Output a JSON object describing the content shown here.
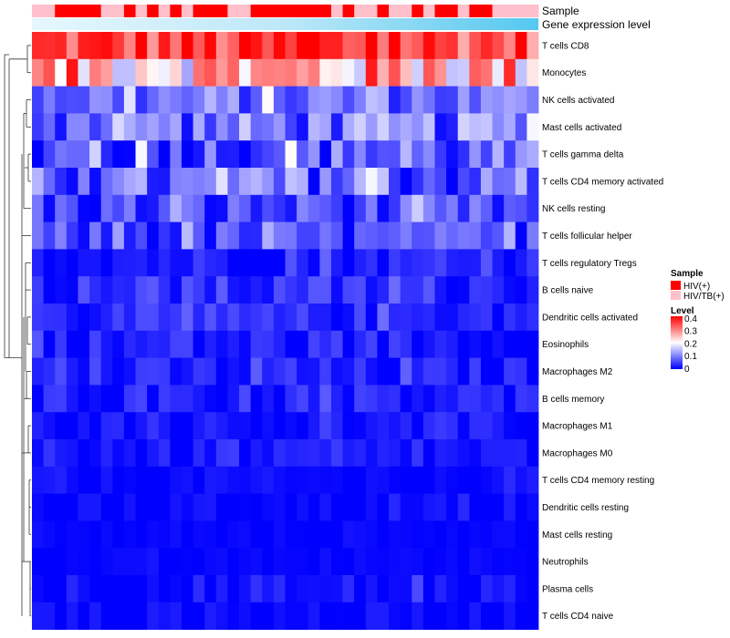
{
  "chart_data": {
    "type": "heatmap",
    "annotation_labels": [
      "Sample",
      "Gene expression level"
    ],
    "rows": [
      "T cells CD8",
      "Monocytes",
      "NK cells activated",
      "Mast cells activated",
      "T cells gamma delta",
      "T cells CD4 memory activated",
      "NK cells resting",
      "T cells follicular helper",
      "T cells regulatory  Tregs",
      "B cells naive",
      "Dendritic cells activated",
      "Eosinophils",
      "Macrophages M2",
      "B cells memory",
      "Macrophages M1",
      "Macrophages M0",
      "T cells CD4 memory resting",
      "Dendritic cells resting",
      "Mast cells resting",
      "Neutrophils",
      "Plasma cells",
      "T cells CD4 naive"
    ],
    "sample_groups": [
      "HIV(+)",
      "HIV/TB(+)"
    ],
    "sample_colors": {
      "HIV(+)": "#ff0000",
      "HIV/TB(+)": "#ffc0cb"
    },
    "sample_annotation": [
      1,
      1,
      0,
      0,
      0,
      0,
      1,
      1,
      0,
      1,
      0,
      1,
      0,
      1,
      0,
      0,
      0,
      1,
      1,
      0,
      0,
      0,
      0,
      0,
      0,
      0,
      1,
      0,
      1,
      1,
      0,
      1,
      1,
      0,
      1,
      0,
      0,
      1,
      0,
      0,
      1,
      1,
      1,
      1
    ],
    "legend": {
      "sample_title": "Sample",
      "level_title": "Level",
      "level_ticks": [
        0.4,
        0.3,
        0.2,
        0.1,
        0
      ],
      "level_range": [
        0,
        0.42
      ],
      "colors": [
        "#0000ff",
        "#ffffff",
        "#ff0000"
      ]
    },
    "row_means": [
      0.36,
      0.27,
      0.09,
      0.09,
      0.07,
      0.07,
      0.05,
      0.05,
      0.025,
      0.035,
      0.03,
      0.02,
      0.02,
      0.018,
      0.014,
      0.012,
      0.004,
      0.004,
      0.002,
      0.002,
      0.008,
      0.004
    ],
    "row_spread": [
      0.05,
      0.08,
      0.04,
      0.05,
      0.05,
      0.05,
      0.04,
      0.035,
      0.02,
      0.025,
      0.02,
      0.025,
      0.02,
      0.02,
      0.015,
      0.015,
      0.01,
      0.01,
      0.005,
      0.005,
      0.02,
      0.012
    ]
  }
}
